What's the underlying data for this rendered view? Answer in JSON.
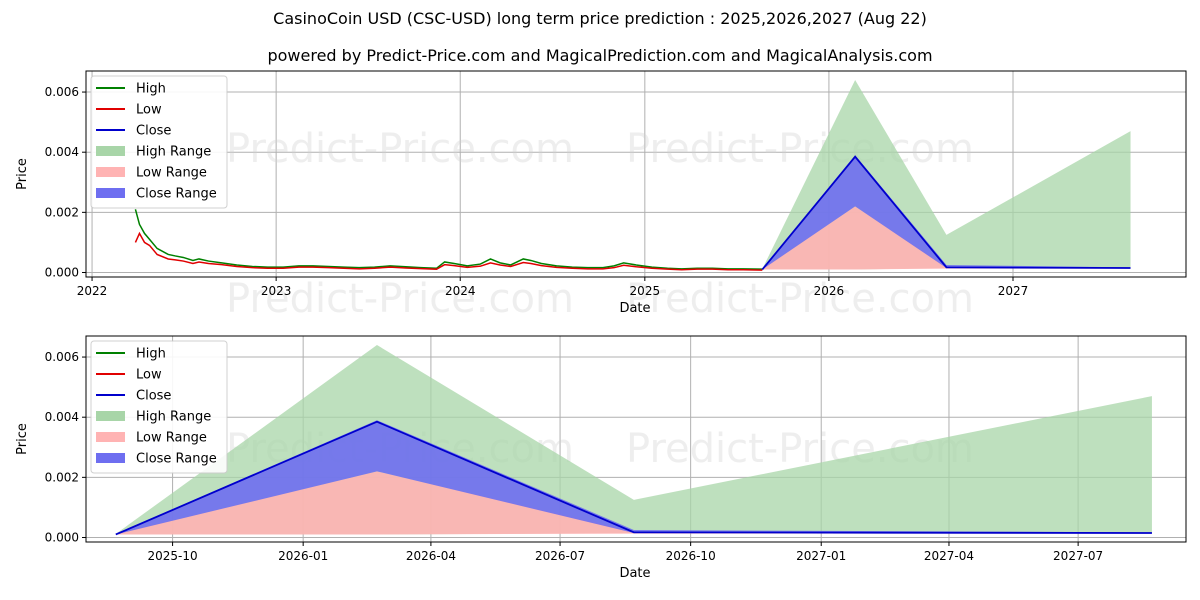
{
  "title": "CasinoCoin USD (CSC-USD) long term price prediction : 2025,2026,2027 (Aug 22)",
  "subtitle": "powered by Predict-Price.com and MagicalPrediction.com and MagicalAnalysis.com",
  "watermark": "Predict-Price.com",
  "colors": {
    "high": "#008000",
    "low": "#e00000",
    "close": "#0000cc",
    "high_range": "#a8d5a8",
    "low_range": "#ffb3b3",
    "close_range": "#6e6ef0"
  },
  "legend": [
    "High",
    "Low",
    "Close",
    "High Range",
    "Low Range",
    "Close Range"
  ],
  "chart_data": [
    {
      "type": "line",
      "xlabel": "Date",
      "ylabel": "Price",
      "xlim": [
        "2021-12-20",
        "2027-12-10"
      ],
      "ylim": [
        -0.00015,
        0.0067
      ],
      "x_ticks": [
        "2022",
        "2023",
        "2024",
        "2025",
        "2026",
        "2027"
      ],
      "x_tick_dates": [
        "2022-01-01",
        "2023-01-01",
        "2024-01-01",
        "2025-01-01",
        "2026-01-01",
        "2027-01-01"
      ],
      "y_ticks": [
        "0.000",
        "0.002",
        "0.004",
        "0.006"
      ],
      "y_tick_values": [
        0,
        0.002,
        0.004,
        0.006
      ],
      "grid": true,
      "legend_position": "top-left",
      "history": {
        "dates": [
          "2022-03-28",
          "2022-04-05",
          "2022-04-15",
          "2022-04-25",
          "2022-05-10",
          "2022-06-01",
          "2022-06-15",
          "2022-07-01",
          "2022-07-20",
          "2022-08-01",
          "2022-08-20",
          "2022-09-15",
          "2022-10-15",
          "2022-11-15",
          "2022-12-15",
          "2023-01-15",
          "2023-02-15",
          "2023-03-15",
          "2023-04-15",
          "2023-05-15",
          "2023-06-15",
          "2023-07-15",
          "2023-08-15",
          "2023-09-15",
          "2023-10-15",
          "2023-11-15",
          "2023-12-01",
          "2023-12-20",
          "2024-01-15",
          "2024-02-10",
          "2024-03-01",
          "2024-03-20",
          "2024-04-10",
          "2024-05-05",
          "2024-05-20",
          "2024-06-10",
          "2024-07-10",
          "2024-08-10",
          "2024-09-10",
          "2024-10-10",
          "2024-11-01",
          "2024-11-20",
          "2024-12-15",
          "2025-01-15",
          "2025-02-15",
          "2025-03-15",
          "2025-04-15",
          "2025-05-15",
          "2025-06-15",
          "2025-07-15",
          "2025-08-22"
        ],
        "high": [
          0.0021,
          0.0016,
          0.0013,
          0.0011,
          0.0008,
          0.0006,
          0.00055,
          0.0005,
          0.0004,
          0.00045,
          0.00038,
          0.00032,
          0.00025,
          0.0002,
          0.00018,
          0.00018,
          0.00022,
          0.00022,
          0.0002,
          0.00018,
          0.00016,
          0.00018,
          0.00022,
          0.00019,
          0.00016,
          0.00014,
          0.00035,
          0.0003,
          0.00022,
          0.00028,
          0.00045,
          0.00032,
          0.00025,
          0.00045,
          0.0004,
          0.0003,
          0.00022,
          0.00018,
          0.00016,
          0.00016,
          0.00022,
          0.00032,
          0.00025,
          0.00018,
          0.00014,
          0.00012,
          0.00014,
          0.00014,
          0.00012,
          0.00012,
          0.00011
        ],
        "low": [
          0.001,
          0.0013,
          0.001,
          0.0009,
          0.0006,
          0.00045,
          0.00042,
          0.00038,
          0.0003,
          0.00035,
          0.0003,
          0.00026,
          0.0002,
          0.00016,
          0.00014,
          0.00014,
          0.00018,
          0.00018,
          0.00016,
          0.00014,
          0.00012,
          0.00014,
          0.00018,
          0.00015,
          0.00013,
          0.00011,
          0.00026,
          0.00023,
          0.00017,
          0.00021,
          0.00032,
          0.00025,
          0.0002,
          0.00033,
          0.0003,
          0.00023,
          0.00017,
          0.00014,
          0.00012,
          0.00012,
          0.00016,
          0.00024,
          0.00019,
          0.00014,
          0.00011,
          9e-05,
          0.00011,
          0.00011,
          9e-05,
          9e-05,
          8e-05
        ],
        "close": [
          0.0016,
          0.0015,
          0.0012,
          0.001,
          0.0007,
          0.0005,
          0.00048,
          0.00045,
          0.00035,
          0.0004,
          0.00034,
          0.00029,
          0.00022,
          0.00018,
          0.00016,
          0.00016,
          0.0002,
          0.0002,
          0.00018,
          0.00016,
          0.00014,
          0.00016,
          0.0002,
          0.00017,
          0.00015,
          0.00012,
          0.0003,
          0.00027,
          0.0002,
          0.00025,
          0.0004,
          0.00029,
          0.00023,
          0.0004,
          0.00035,
          0.00027,
          0.0002,
          0.00016,
          0.00014,
          0.00014,
          0.00019,
          0.00028,
          0.00022,
          0.00016,
          0.00012,
          0.0001,
          0.00012,
          0.00012,
          0.0001,
          0.0001,
          0.0001
        ]
      },
      "forecast": {
        "dates": [
          "2025-08-22",
          "2026-02-22",
          "2026-08-22",
          "2027-08-22"
        ],
        "high_range_top": [
          0.00012,
          0.0064,
          0.00125,
          0.0047
        ],
        "high_range_bottom": [
          0.0001,
          0.0001,
          0.00015,
          0.00015
        ],
        "low_range_top": [
          0.00012,
          0.0022,
          0.0002,
          0.00015
        ],
        "low_range_bottom": [
          0.0001,
          0.0001,
          0.00013,
          0.00013
        ],
        "close_range_top": [
          0.00012,
          0.0039,
          0.00025,
          0.00017
        ],
        "close_range_bottom": [
          0.0001,
          0.0022,
          0.00015,
          0.00015
        ],
        "close": [
          0.0001,
          0.00385,
          0.00017,
          0.00015
        ]
      }
    },
    {
      "type": "line",
      "xlabel": "Date",
      "ylabel": "Price",
      "xlim": [
        "2025-08-01",
        "2027-09-15"
      ],
      "ylim": [
        -0.00015,
        0.0067
      ],
      "x_ticks": [
        "2025-10",
        "2026-01",
        "2026-04",
        "2026-07",
        "2026-10",
        "2027-01",
        "2027-04",
        "2027-07"
      ],
      "x_tick_dates": [
        "2025-10-01",
        "2026-01-01",
        "2026-04-01",
        "2026-07-01",
        "2026-10-01",
        "2027-01-01",
        "2027-04-01",
        "2027-07-01"
      ],
      "y_ticks": [
        "0.000",
        "0.002",
        "0.004",
        "0.006"
      ],
      "y_tick_values": [
        0,
        0.002,
        0.004,
        0.006
      ],
      "grid": true,
      "legend_position": "top-left"
    }
  ]
}
